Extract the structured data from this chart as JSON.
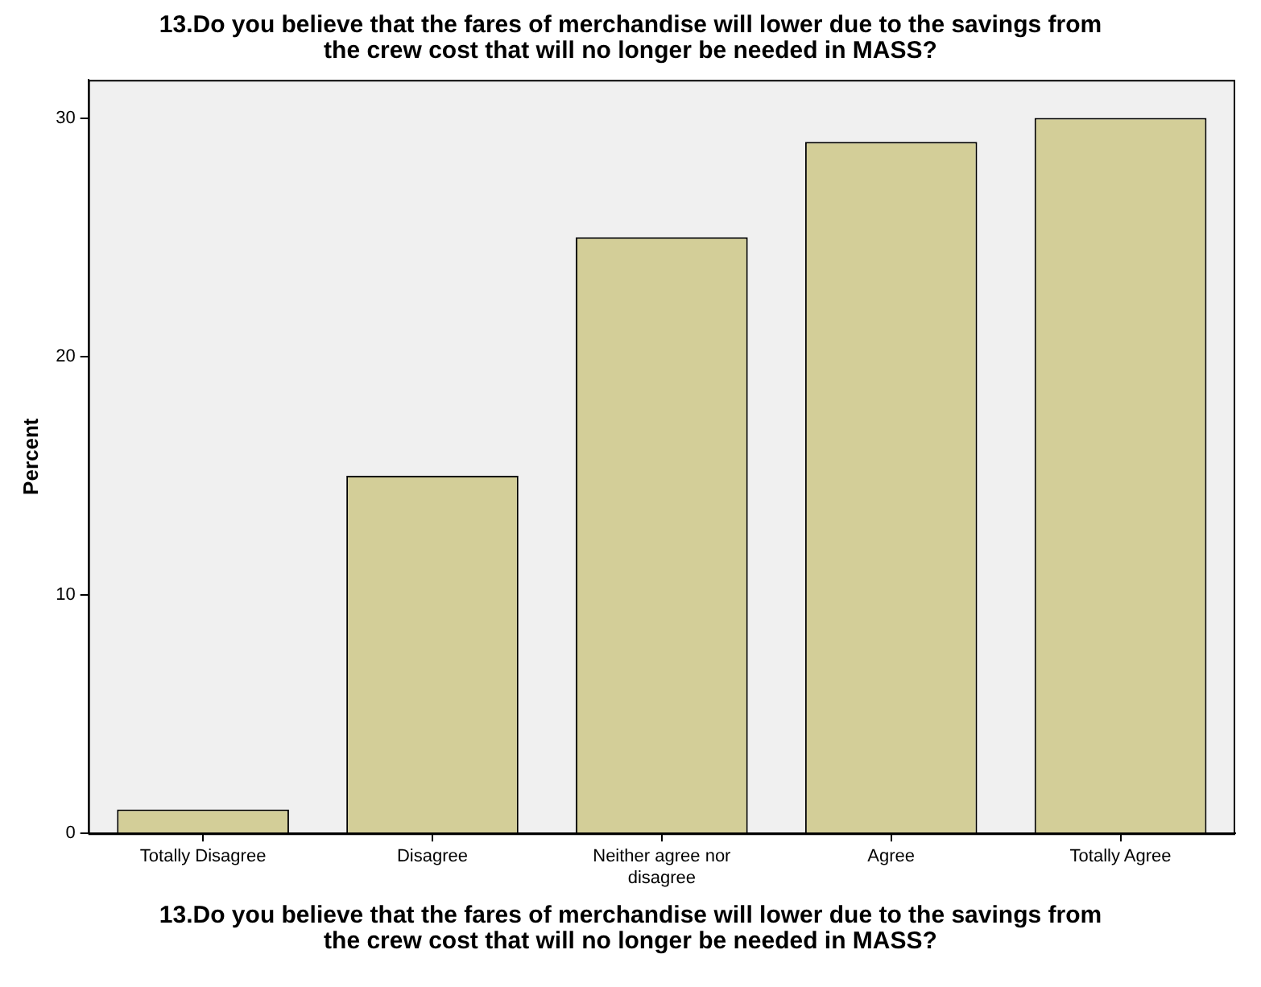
{
  "chart_data": {
    "type": "bar",
    "title": "13.Do you believe that the fares of merchandise will lower due to the savings from the crew cost that will no longer be needed in MASS?",
    "xlabel": "13.Do you believe that the fares of merchandise will lower due to the savings from the crew cost that will no longer be needed in MASS?",
    "ylabel": "Percent",
    "categories": [
      "Totally Disagree",
      "Disagree",
      "Neither agree nor disagree",
      "Agree",
      "Totally Agree"
    ],
    "values": [
      1,
      15,
      25,
      29,
      30
    ],
    "color": "#d3ce98",
    "ylim": [
      0,
      31.6
    ],
    "yticks": [
      0,
      10,
      20,
      30
    ],
    "grid": false,
    "legend": false
  }
}
